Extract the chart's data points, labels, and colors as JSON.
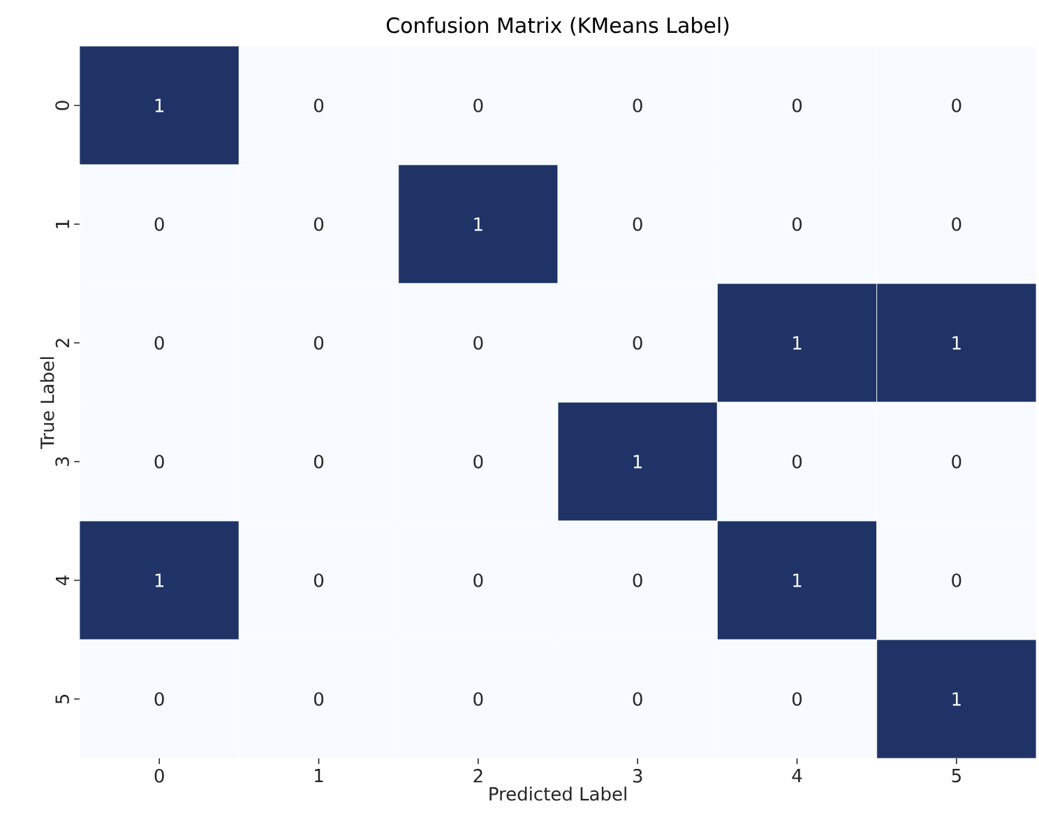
{
  "chart_data": {
    "type": "heatmap",
    "title": "Confusion Matrix (KMeans Label)",
    "xlabel": "Predicted Label",
    "ylabel": "True Label",
    "categories": [
      "0",
      "1",
      "2",
      "3",
      "4",
      "5"
    ],
    "y_categories": [
      "0",
      "1",
      "2",
      "3",
      "4",
      "5"
    ],
    "cells": [
      [
        1,
        0,
        0,
        0,
        0,
        0
      ],
      [
        0,
        0,
        1,
        0,
        0,
        0
      ],
      [
        0,
        0,
        0,
        0,
        1,
        1
      ],
      [
        0,
        0,
        0,
        1,
        0,
        0
      ],
      [
        1,
        0,
        0,
        0,
        1,
        0
      ],
      [
        0,
        0,
        0,
        0,
        0,
        1
      ]
    ],
    "color": "#1f3366",
    "data_labels": true
  }
}
